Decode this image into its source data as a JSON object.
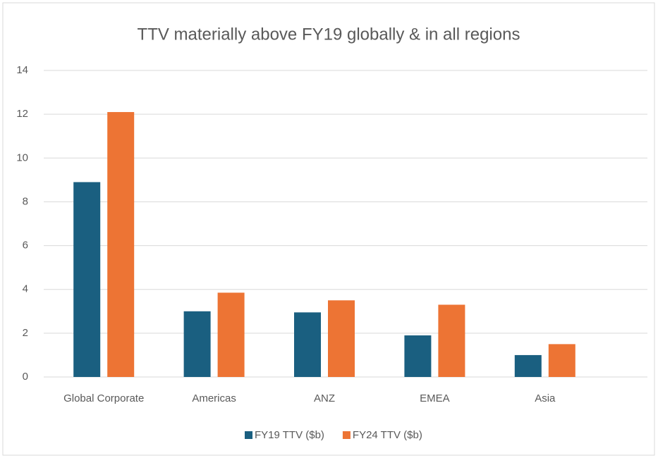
{
  "chart_data": {
    "type": "bar",
    "title": "TTV materially above FY19 globally & in all regions",
    "categories": [
      "Global Corporate",
      "Americas",
      "ANZ",
      "EMEA",
      "Asia"
    ],
    "series": [
      {
        "name": "FY19 TTV ($b)",
        "color": "#1a5f80",
        "values": [
          8.9,
          3.0,
          2.95,
          1.9,
          1.0
        ]
      },
      {
        "name": "FY24 TTV ($b)",
        "color": "#ed7434",
        "values": [
          12.1,
          3.85,
          3.5,
          3.3,
          1.5
        ]
      }
    ],
    "ylim": [
      0,
      14
    ],
    "yticks": [
      0,
      2,
      4,
      6,
      8,
      10,
      12,
      14
    ],
    "grid": true,
    "legend": "bottom"
  }
}
